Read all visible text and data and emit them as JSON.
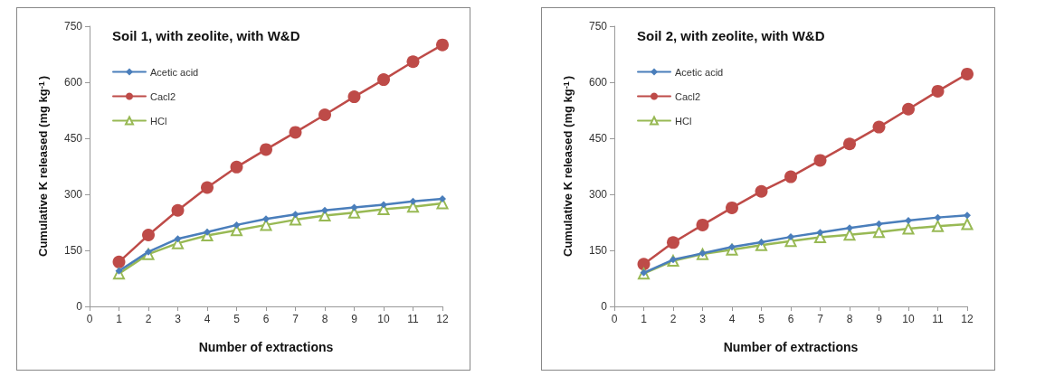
{
  "chart_data": [
    {
      "type": "line",
      "title": "Soil 1, with zeolite, with W&D",
      "xlabel": "Number of extractions",
      "ylabel": "Cumulative K released (mg kg$^{-1}$)",
      "x": [
        1,
        2,
        3,
        4,
        5,
        6,
        7,
        8,
        9,
        10,
        11,
        12
      ],
      "xlim": [
        0,
        12
      ],
      "xticks": [
        0,
        1,
        2,
        3,
        4,
        5,
        6,
        7,
        8,
        9,
        10,
        11,
        12
      ],
      "ylim": [
        0,
        750
      ],
      "yticks": [
        0,
        150,
        300,
        450,
        600,
        750
      ],
      "grid": false,
      "legend": "top left",
      "series": [
        {
          "name": "Acetic acid",
          "color": "#4a7ebb",
          "marker": "diamond",
          "values": [
            95,
            146,
            181,
            199,
            218,
            234,
            246,
            257,
            265,
            272,
            281,
            288
          ]
        },
        {
          "name": "Cacl2",
          "color": "#be4b48",
          "marker": "circle",
          "values": [
            119,
            191,
            257,
            318,
            373,
            420,
            466,
            513,
            561,
            607,
            655,
            700
          ]
        },
        {
          "name": "HCl",
          "color": "#98b954",
          "marker": "triangle",
          "values": [
            88,
            140,
            169,
            190,
            204,
            218,
            232,
            243,
            251,
            260,
            267,
            276
          ]
        }
      ]
    },
    {
      "type": "line",
      "title": "Soil 2, with zeolite, with W&D",
      "xlabel": "Number of extractions",
      "ylabel": "Cumulative K released (mg kg$^{-1}$)",
      "x": [
        1,
        2,
        3,
        4,
        5,
        6,
        7,
        8,
        9,
        10,
        11,
        12
      ],
      "xlim": [
        0,
        12
      ],
      "xticks": [
        0,
        1,
        2,
        3,
        4,
        5,
        6,
        7,
        8,
        9,
        10,
        11,
        12
      ],
      "ylim": [
        0,
        750
      ],
      "yticks": [
        0,
        150,
        300,
        450,
        600,
        750
      ],
      "grid": false,
      "legend": "top left",
      "series": [
        {
          "name": "Acetic acid",
          "color": "#4a7ebb",
          "marker": "diamond",
          "values": [
            90,
            125,
            142,
            159,
            172,
            186,
            198,
            210,
            221,
            230,
            238,
            244
          ]
        },
        {
          "name": "Cacl2",
          "color": "#be4b48",
          "marker": "circle",
          "values": [
            113,
            171,
            218,
            264,
            308,
            347,
            391,
            435,
            480,
            528,
            576,
            622
          ]
        },
        {
          "name": "HCl",
          "color": "#98b954",
          "marker": "triangle",
          "values": [
            88,
            122,
            140,
            152,
            164,
            175,
            185,
            192,
            199,
            208,
            215,
            220
          ]
        }
      ]
    }
  ]
}
